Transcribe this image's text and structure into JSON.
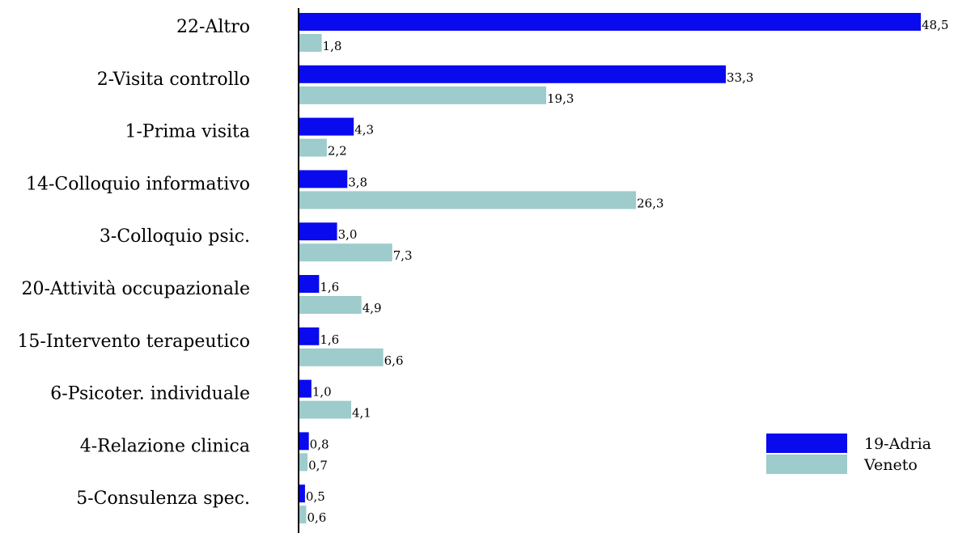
{
  "chart_data": {
    "type": "bar",
    "orientation": "horizontal",
    "categories": [
      "22-Altro",
      "2-Visita controllo",
      "1-Prima visita",
      "14-Colloquio informativo",
      "3-Colloquio psic.",
      "20-Attività occupazionale",
      "15-Intervento terapeutico",
      "6-Psicoter. individuale",
      "4-Relazione clinica",
      "5-Consulenza spec."
    ],
    "series": [
      {
        "name": "19-Adria",
        "color": "#0a0aee",
        "values": [
          48.5,
          33.3,
          4.3,
          3.8,
          3.0,
          1.6,
          1.6,
          1.0,
          0.8,
          0.5
        ],
        "labels": [
          "48,5",
          "33,3",
          "4,3",
          "3,8",
          "3,0",
          "1,6",
          "1,6",
          "1,0",
          "0,8",
          "0,5"
        ]
      },
      {
        "name": "Veneto",
        "color": "#9ecbcb",
        "values": [
          1.8,
          19.3,
          2.2,
          26.3,
          7.3,
          4.9,
          6.6,
          4.1,
          0.7,
          0.6
        ],
        "labels": [
          "1,8",
          "19,3",
          "2,2",
          "26,3",
          "7,3",
          "4,9",
          "6,6",
          "4,1",
          "0,7",
          "0,6"
        ]
      }
    ],
    "xlim": [
      0,
      48.5
    ],
    "title": "",
    "xlabel": "",
    "ylabel": "",
    "legend_position": "bottom-right",
    "grid": false
  }
}
